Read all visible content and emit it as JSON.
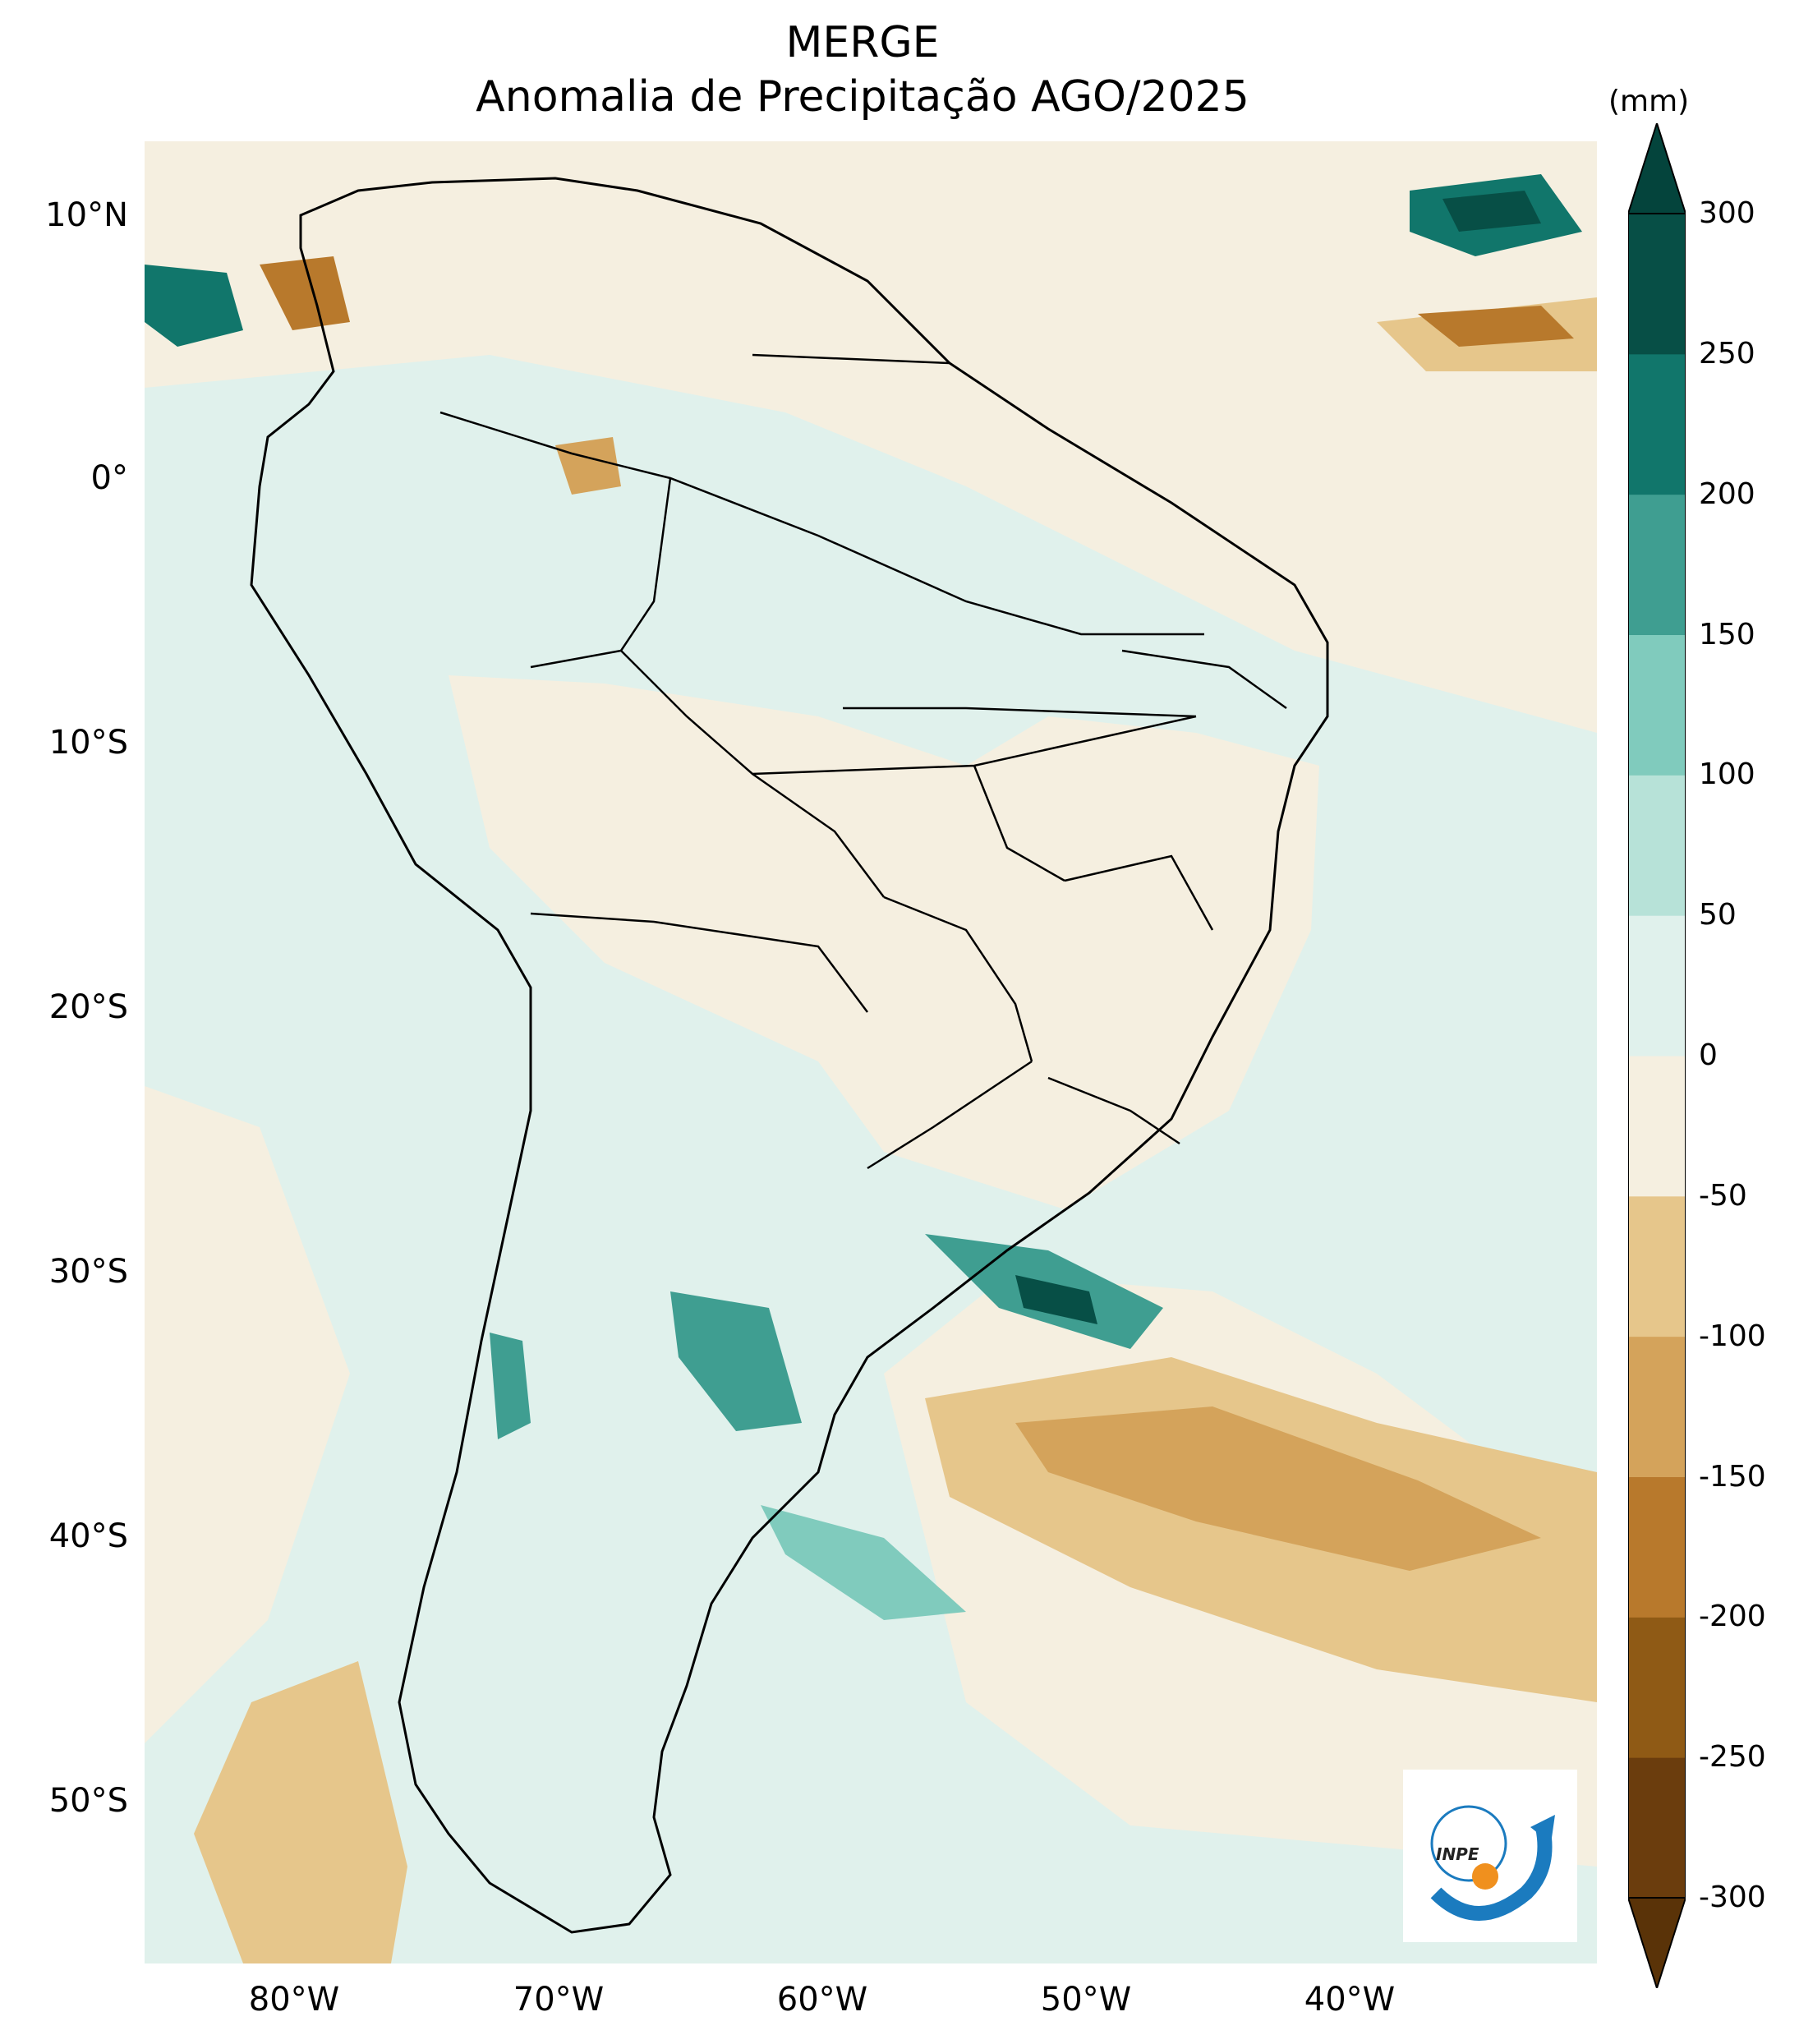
{
  "title": "MERGE",
  "subtitle": "Anomalia de Precipitação AGO/2025",
  "units": "(mm)",
  "lat_ticks": [
    {
      "value": 10,
      "label": "10°N"
    },
    {
      "value": 0,
      "label": "0°"
    },
    {
      "value": -10,
      "label": "10°S"
    },
    {
      "value": -20,
      "label": "20°S"
    },
    {
      "value": -30,
      "label": "30°S"
    },
    {
      "value": -40,
      "label": "40°S"
    },
    {
      "value": -50,
      "label": "50°S"
    }
  ],
  "lon_ticks": [
    {
      "value": -80,
      "label": "80°W"
    },
    {
      "value": -70,
      "label": "70°W"
    },
    {
      "value": -60,
      "label": "60°W"
    },
    {
      "value": -50,
      "label": "50°W"
    },
    {
      "value": -40,
      "label": "40°W"
    }
  ],
  "map_extent": {
    "lon_min": -85,
    "lon_max": -30,
    "lat_min": -56,
    "lat_max": 13
  },
  "colorbar": {
    "levels": [
      -300,
      -250,
      -200,
      -150,
      -100,
      -50,
      0,
      50,
      100,
      150,
      200,
      250,
      300
    ],
    "labels": [
      "-300",
      "-250",
      "-200",
      "-150",
      "-100",
      "-50",
      "0",
      "50",
      "100",
      "150",
      "200",
      "250",
      "300"
    ],
    "colors": [
      "#6b3d0d",
      "#8f5a15",
      "#b8792c",
      "#d4a35b",
      "#e6c68b",
      "#f5efe0",
      "#e0f1ec",
      "#b7e2d8",
      "#80cbbd",
      "#3f9e91",
      "#11766b",
      "#074f46"
    ],
    "extend_low_color": "#5a3308",
    "extend_high_color": "#04443c"
  },
  "logo_text": "INPE"
}
